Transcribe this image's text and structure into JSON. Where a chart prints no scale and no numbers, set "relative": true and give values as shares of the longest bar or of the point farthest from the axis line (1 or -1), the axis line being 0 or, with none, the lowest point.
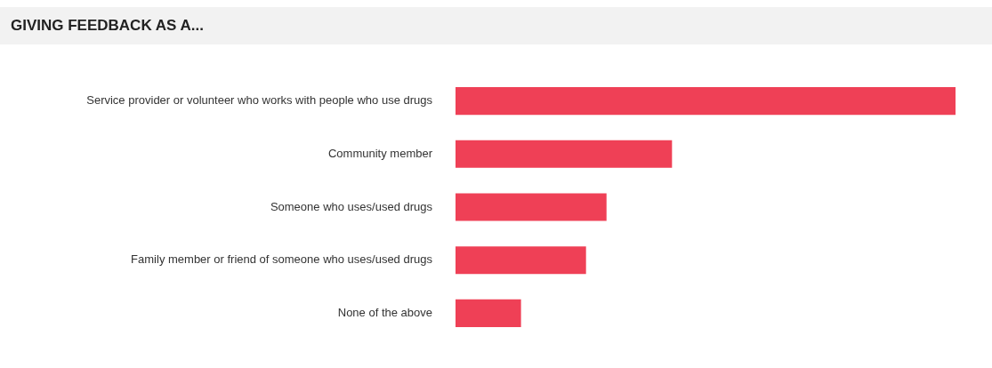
{
  "chart_data": {
    "type": "bar",
    "orientation": "horizontal",
    "relative": true,
    "title": "GIVING FEEDBACK AS A...",
    "categories": [
      "Service provider or volunteer who works with people who use drugs",
      "Community member",
      "Someone who uses/used drugs",
      "Family member or friend of someone who uses/used drugs",
      "None of the above"
    ],
    "values": [
      1,
      0.433,
      0.302,
      0.261,
      0.131
    ],
    "color": "#ef4056",
    "legend": false
  }
}
